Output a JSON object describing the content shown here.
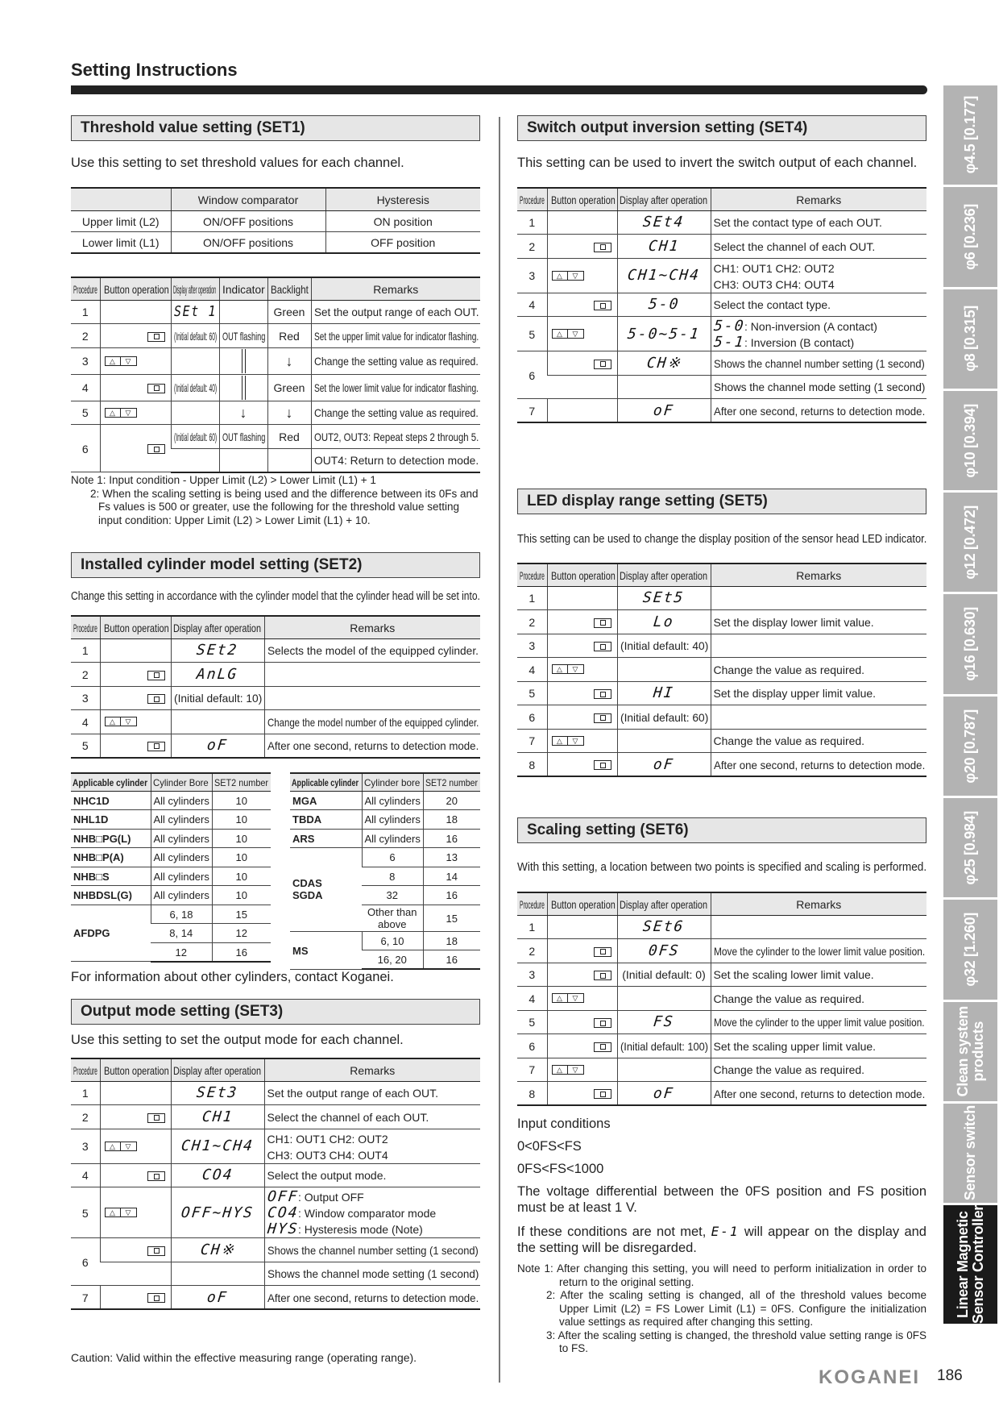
{
  "page": {
    "title": "Setting Instructions",
    "brand": "KOGANEI",
    "page_number": "186"
  },
  "side_tabs": [
    {
      "label": "φ4.5 [0.177]"
    },
    {
      "label": "φ6 [0.236]"
    },
    {
      "label": "φ8 [0.315]"
    },
    {
      "label": "φ10 [0.394]"
    },
    {
      "label": "φ12 [0.472]"
    },
    {
      "label": "φ16 [0.630]"
    },
    {
      "label": "φ20 [0.787]"
    },
    {
      "label": "φ25 [0.984]"
    },
    {
      "label": "φ32 [1.260]"
    },
    {
      "label": "Clean system\nproducts"
    },
    {
      "label": "Sensor switch"
    },
    {
      "label": "Linear Magnetic\nSensor Controller",
      "active": true
    }
  ],
  "colors": {
    "tab_bg": "#b3b3b3",
    "tab_active_bg": "#1a1a1a",
    "header_bg": "#e6e6e6"
  },
  "set1": {
    "heading": "Threshold value setting (SET1)",
    "intro": "Use this setting to set threshold values for each channel.",
    "notes": [
      "Note 1: Input condition - Upper Limit (L2) > Lower Limit (L1) + 1",
      "2: When the scaling setting is being used and the difference between its 0Fs and Fs values is 500 or greater, use the following for the threshold value setting input condition: Upper Limit (L2) > Lower Limit (L1) + 10."
    ]
  },
  "set2": {
    "heading": "Installed cylinder model setting (SET2)",
    "intro": "Change this setting in accordance with the cylinder model that the cylinder head will be set into.",
    "footer": "For information about other cylinders, contact Koganei."
  },
  "set3": {
    "heading": "Output mode setting (SET3)",
    "intro": "Use this setting to set the output mode for each channel.",
    "caution": "Caution: Valid within the effective measuring range (operating range)."
  },
  "set4": {
    "heading": "Switch output inversion setting (SET4)",
    "intro": "This setting can be used to invert the switch output of each channel."
  },
  "set5": {
    "heading": "LED display range setting (SET5)",
    "intro": "This setting can be used to change the display position of the sensor head LED indicator."
  },
  "set6": {
    "heading": "Scaling setting (SET6)",
    "intro": "With this setting, a location between two points is specified and scaling is performed.",
    "conditions_title": "Input conditions",
    "conditions": [
      "0<0FS<FS",
      "0FS<FS<1000"
    ],
    "voltage_text": "The voltage differential between the 0FS position and FS position must be at least 1 V.",
    "error_pre": "If these conditions are not met,",
    "error_code": "E-1",
    "error_post": "will appear on the display and the setting will be disregarded.",
    "notes": [
      "Note 1: After changing this setting, you will need to perform initialization in order to return to the original setting.",
      "2: After the scaling setting is changed, all of the threshold values become Upper Limit (L2) = FS Lower Limit (L1) = 0FS. Configure the initialization value settings as required after changing this setting.",
      "3: After the scaling setting is changed, the threshold value setting range is 0FS to FS."
    ]
  },
  "tables": {
    "set1_window": {
      "head": [
        "",
        "Window comparator",
        "Hysteresis"
      ],
      "rows": [
        [
          "Upper limit (L2)",
          "ON/OFF positions",
          "ON position"
        ],
        [
          "Lower limit (L1)",
          "ON/OFF positions",
          "OFF position"
        ]
      ]
    },
    "set1": {
      "head": [
        "Procedure",
        "Button operation",
        "Display after operation",
        "Indicator",
        "Backlight",
        "Remarks"
      ],
      "rows": [
        [
          "1",
          "",
          {
            "lcd": "SEt 1"
          },
          "",
          "Green",
          "Set the output range of each OUT."
        ],
        [
          "2",
          {
            "btn": "set"
          },
          "(Initial default: 60)",
          "OUT flashing",
          "Red",
          "Set the upper limit value for indicator flashing."
        ],
        [
          "3",
          {
            "btn": "updown"
          },
          "",
          {
            "icon": "vline"
          },
          {
            "icon": "down-arrow"
          },
          "Change the setting value as required."
        ],
        [
          "4",
          {
            "btn": "set"
          },
          "(Initial default: 40)",
          {
            "icon": "vline"
          },
          "Green",
          "Set the lower limit value for indicator flashing."
        ],
        [
          "5",
          {
            "btn": "updown"
          },
          "",
          {
            "icon": "down-arrow"
          },
          {
            "icon": "down-arrow"
          },
          "Change the setting value as required."
        ],
        [
          {
            "t": "6",
            "rs": 2
          },
          {
            "btn": "set",
            "rs": 2
          },
          "(Initial default: 60)",
          "OUT flashing",
          "Red",
          "OUT2, OUT3: Repeat steps 2 through 5."
        ],
        [
          null,
          null,
          "",
          "",
          "",
          "OUT4: Return to detection mode."
        ]
      ]
    },
    "set2": {
      "head": [
        "Procedure",
        "Button operation",
        "Display after operation",
        "Remarks"
      ],
      "rows": [
        [
          "1",
          "",
          {
            "lcd": "SEt2"
          },
          "Selects the model of the equipped cylinder."
        ],
        [
          "2",
          {
            "btn": "set"
          },
          {
            "lcd": "AnLG"
          },
          ""
        ],
        [
          "3",
          {
            "btn": "set"
          },
          "(Initial default: 10)",
          ""
        ],
        [
          "4",
          {
            "btn": "updown"
          },
          "",
          "Change the model number of the equipped cylinder."
        ],
        [
          "5",
          {
            "btn": "set"
          },
          {
            "lcd": "oF"
          },
          "After one second, returns to detection mode."
        ]
      ]
    },
    "cyl_left": {
      "head": [
        "Applicable cylinder",
        "Cylinder Bore",
        "SET2 number"
      ],
      "rows": [
        [
          "NHC1D",
          "All cylinders",
          "10"
        ],
        [
          "NHL1D",
          "All cylinders",
          "10"
        ],
        [
          "NHB□PG(L)",
          "All cylinders",
          "10"
        ],
        [
          "NHB□P(A)",
          "All cylinders",
          "10"
        ],
        [
          "NHB□S",
          "All cylinders",
          "10"
        ],
        [
          "NHBDSL(G)",
          "All cylinders",
          "10"
        ],
        [
          {
            "t": "AFDPG",
            "rs": 3
          },
          {
            "t": "6, 18",
            "c": 1
          },
          "15"
        ],
        [
          null,
          {
            "t": "8, 14",
            "c": 1
          },
          "12"
        ],
        [
          null,
          {
            "t": "12",
            "c": 1
          },
          "16"
        ]
      ]
    },
    "cyl_right": {
      "head": [
        "Applicable cylinder",
        "Cylinder bore",
        "SET2 number"
      ],
      "rows": [
        [
          "MGA",
          "All cylinders",
          "20"
        ],
        [
          "TBDA",
          "All cylinders",
          "18"
        ],
        [
          "ARS",
          "All cylinders",
          "16"
        ],
        [
          {
            "t": "CDAS\nSGDA",
            "rs": 4
          },
          {
            "t": "6",
            "c": 1
          },
          "13"
        ],
        [
          null,
          {
            "t": "8",
            "c": 1
          },
          "14"
        ],
        [
          null,
          {
            "t": "32",
            "c": 1
          },
          "16"
        ],
        [
          null,
          {
            "t": "Other than above",
            "c": 1
          },
          "15"
        ],
        [
          {
            "t": "MS",
            "rs": 2
          },
          {
            "t": "6, 10",
            "c": 1
          },
          "18"
        ],
        [
          null,
          {
            "t": "16, 20",
            "c": 1
          },
          "16"
        ]
      ]
    },
    "set3": {
      "head": [
        "Procedure",
        "Button operation",
        "Display after operation",
        "Remarks"
      ],
      "rows": [
        [
          "1",
          "",
          {
            "lcd": "SEt3"
          },
          "Set the output range of each OUT."
        ],
        [
          "2",
          {
            "btn": "set"
          },
          {
            "lcd": "CH1"
          },
          "Select the channel of each OUT."
        ],
        [
          "3",
          {
            "btn": "updown"
          },
          {
            "lcd": "CH1~CH4"
          },
          {
            "lines": [
              "CH1: OUT1 CH2: OUT2",
              "CH3: OUT3 CH4: OUT4"
            ]
          }
        ],
        [
          "4",
          {
            "btn": "set"
          },
          {
            "lcd": "CO4"
          },
          "Select the output mode."
        ],
        [
          "5",
          {
            "btn": "updown"
          },
          {
            "lcd": "OFF~HYS"
          },
          {
            "lines": [
              {
                "lcd": "OFF",
                "t": " : Output OFF"
              },
              {
                "lcd": "CO4",
                "t": " : Window comparator mode"
              },
              {
                "lcd": "HYS",
                "t": " : Hysteresis mode (Note)"
              }
            ]
          }
        ],
        [
          {
            "t": "6",
            "rs": 2
          },
          {
            "btn": "set"
          },
          {
            "lcd": "CH※"
          },
          "Shows the channel number setting (1 second)"
        ],
        [
          null,
          "",
          "",
          "Shows the channel mode setting (1 second)"
        ],
        [
          "7",
          {
            "btn": "set"
          },
          {
            "lcd": "oF"
          },
          "After one second, returns to detection mode."
        ]
      ]
    },
    "set4": {
      "head": [
        "Procedure",
        "Button operation",
        "Display after operation",
        "Remarks"
      ],
      "rows": [
        [
          "1",
          "",
          {
            "lcd": "SEt4"
          },
          "Set the contact type of each OUT."
        ],
        [
          "2",
          {
            "btn": "set"
          },
          {
            "lcd": "CH1"
          },
          "Select the channel of each OUT."
        ],
        [
          "3",
          {
            "btn": "updown"
          },
          {
            "lcd": "CH1~CH4"
          },
          {
            "lines": [
              "CH1: OUT1 CH2: OUT2",
              "CH3: OUT3 CH4: OUT4"
            ]
          }
        ],
        [
          "4",
          {
            "btn": "set"
          },
          {
            "lcd": "5-0"
          },
          "Select the contact type."
        ],
        [
          "5",
          {
            "btn": "updown"
          },
          {
            "lcd": "5-0~5-1"
          },
          {
            "lines": [
              {
                "lcd": "5-0",
                "t": ": Non-inversion (A contact)"
              },
              {
                "lcd": "5-1",
                "t": ": Inversion (B contact)"
              }
            ]
          }
        ],
        [
          {
            "t": "6",
            "rs": 2
          },
          {
            "btn": "set"
          },
          {
            "lcd": "CH※"
          },
          "Shows the channel number setting (1 second)"
        ],
        [
          null,
          "",
          "",
          "Shows the channel mode setting (1 second)"
        ],
        [
          "7",
          "",
          {
            "lcd": "oF"
          },
          "After one second, returns to detection mode."
        ]
      ]
    },
    "set5": {
      "head": [
        "Procedure",
        "Button operation",
        "Display after operation",
        "Remarks"
      ],
      "rows": [
        [
          "1",
          "",
          {
            "lcd": "SEt5"
          },
          ""
        ],
        [
          "2",
          {
            "btn": "set"
          },
          {
            "lcd": "Lo"
          },
          "Set the display lower limit value."
        ],
        [
          "3",
          {
            "btn": "set"
          },
          "(Initial default: 40)",
          ""
        ],
        [
          "4",
          {
            "btn": "updown"
          },
          "",
          "Change the value as required."
        ],
        [
          "5",
          {
            "btn": "set"
          },
          {
            "lcd": "HI"
          },
          "Set the display upper limit value."
        ],
        [
          "6",
          {
            "btn": "set"
          },
          "(Initial default: 60)",
          ""
        ],
        [
          "7",
          {
            "btn": "updown"
          },
          "",
          "Change the value as required."
        ],
        [
          "8",
          {
            "btn": "set"
          },
          {
            "lcd": "oF"
          },
          "After one second, returns to detection mode."
        ]
      ]
    },
    "set6": {
      "head": [
        "Procedure",
        "Button operation",
        "Display after operation",
        "Remarks"
      ],
      "rows": [
        [
          "1",
          "",
          {
            "lcd": "SEt6"
          },
          ""
        ],
        [
          "2",
          {
            "btn": "set"
          },
          {
            "lcd": "0FS"
          },
          "Move the cylinder to the lower limit value position."
        ],
        [
          "3",
          {
            "btn": "set"
          },
          "(Initial default: 0)",
          "Set the scaling lower limit value."
        ],
        [
          "4",
          {
            "btn": "updown"
          },
          "",
          "Change the value as required."
        ],
        [
          "5",
          {
            "btn": "set"
          },
          {
            "lcd": "FS"
          },
          "Move the cylinder to the upper limit value position."
        ],
        [
          "6",
          {
            "btn": "set"
          },
          "(Initial default: 100)",
          "Set the scaling upper limit value."
        ],
        [
          "7",
          {
            "btn": "updown"
          },
          "",
          "Change the value as required."
        ],
        [
          "8",
          {
            "btn": "set"
          },
          {
            "lcd": "oF"
          },
          "After one second, returns to detection mode."
        ]
      ]
    }
  }
}
